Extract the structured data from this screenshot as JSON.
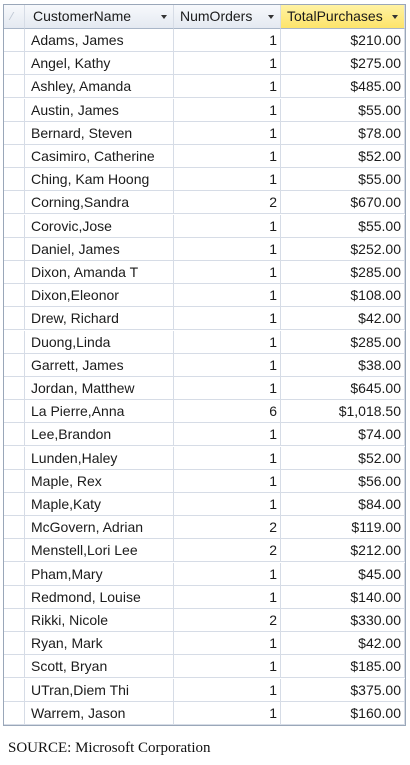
{
  "table": {
    "columns": [
      {
        "label": "CustomerName"
      },
      {
        "label": "NumOrders"
      },
      {
        "label": "TotalPurchases"
      }
    ],
    "rows": [
      {
        "name": "Adams, James",
        "orders": "1",
        "total": "$210.00"
      },
      {
        "name": "Angel, Kathy",
        "orders": "1",
        "total": "$275.00"
      },
      {
        "name": "Ashley, Amanda",
        "orders": "1",
        "total": "$485.00"
      },
      {
        "name": "Austin, James",
        "orders": "1",
        "total": "$55.00"
      },
      {
        "name": "Bernard, Steven",
        "orders": "1",
        "total": "$78.00"
      },
      {
        "name": "Casimiro, Catherine",
        "orders": "1",
        "total": "$52.00"
      },
      {
        "name": "Ching, Kam Hoong",
        "orders": "1",
        "total": "$55.00"
      },
      {
        "name": "Corning,Sandra",
        "orders": "2",
        "total": "$670.00"
      },
      {
        "name": "Corovic,Jose",
        "orders": "1",
        "total": "$55.00"
      },
      {
        "name": "Daniel, James",
        "orders": "1",
        "total": "$252.00"
      },
      {
        "name": "Dixon, Amanda T",
        "orders": "1",
        "total": "$285.00"
      },
      {
        "name": "Dixon,Eleonor",
        "orders": "1",
        "total": "$108.00"
      },
      {
        "name": "Drew, Richard",
        "orders": "1",
        "total": "$42.00"
      },
      {
        "name": "Duong,Linda",
        "orders": "1",
        "total": "$285.00"
      },
      {
        "name": "Garrett, James",
        "orders": "1",
        "total": "$38.00"
      },
      {
        "name": "Jordan, Matthew",
        "orders": "1",
        "total": "$645.00"
      },
      {
        "name": "La Pierre,Anna",
        "orders": "6",
        "total": "$1,018.50"
      },
      {
        "name": "Lee,Brandon",
        "orders": "1",
        "total": "$74.00"
      },
      {
        "name": "Lunden,Haley",
        "orders": "1",
        "total": "$52.00"
      },
      {
        "name": "Maple, Rex",
        "orders": "1",
        "total": "$56.00"
      },
      {
        "name": "Maple,Katy",
        "orders": "1",
        "total": "$84.00"
      },
      {
        "name": "McGovern, Adrian",
        "orders": "2",
        "total": "$119.00"
      },
      {
        "name": "Menstell,Lori Lee",
        "orders": "2",
        "total": "$212.00"
      },
      {
        "name": "Pham,Mary",
        "orders": "1",
        "total": "$45.00"
      },
      {
        "name": "Redmond, Louise",
        "orders": "1",
        "total": "$140.00"
      },
      {
        "name": "Rikki, Nicole",
        "orders": "2",
        "total": "$330.00"
      },
      {
        "name": "Ryan, Mark",
        "orders": "1",
        "total": "$42.00"
      },
      {
        "name": "Scott, Bryan",
        "orders": "1",
        "total": "$185.00"
      },
      {
        "name": "UTran,Diem Thi",
        "orders": "1",
        "total": "$375.00"
      },
      {
        "name": "Warrem, Jason",
        "orders": "1",
        "total": "$160.00"
      }
    ]
  },
  "caption": "SOURCE: Microsoft Corporation",
  "colors": {
    "selected_header": "#fde46a",
    "grid_line": "#d6dce6",
    "header_bg": "#e4e9f1"
  },
  "icons": {
    "sort_arrow": "chevron-down-icon"
  }
}
